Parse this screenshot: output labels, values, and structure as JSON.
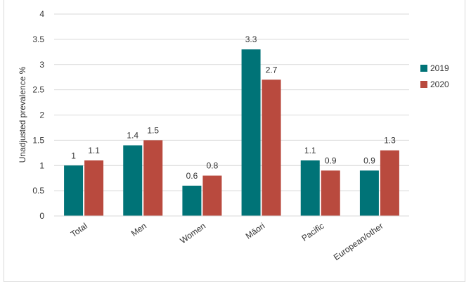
{
  "chart_data": {
    "type": "bar",
    "categories": [
      "Total",
      "Men",
      "Women",
      "Māori",
      "Pacific",
      "European/other"
    ],
    "series": [
      {
        "name": "2019",
        "values": [
          1,
          1.4,
          0.6,
          3.3,
          1.1,
          0.9
        ],
        "color": "#007377"
      },
      {
        "name": "2020",
        "values": [
          1.1,
          1.5,
          0.8,
          2.7,
          0.9,
          1.3
        ],
        "color": "#b94a3e"
      }
    ],
    "data_labels": [
      [
        "1",
        "1.4",
        "0.6",
        "3.3",
        "1.1",
        "0.9"
      ],
      [
        "1.1",
        "1.5",
        "0.8",
        "2.7",
        "0.9",
        "1.3"
      ]
    ],
    "ylabel": "Unadjusted prevalence %",
    "xlabel": "",
    "ylim": [
      0,
      4
    ],
    "yticks": [
      0,
      0.5,
      1,
      1.5,
      2,
      2.5,
      3,
      3.5,
      4
    ],
    "ytick_labels": [
      "0",
      "0.5",
      "1",
      "1.5",
      "2",
      "2.5",
      "3",
      "3.5",
      "4"
    ],
    "grid": true,
    "legend_position": "right"
  }
}
